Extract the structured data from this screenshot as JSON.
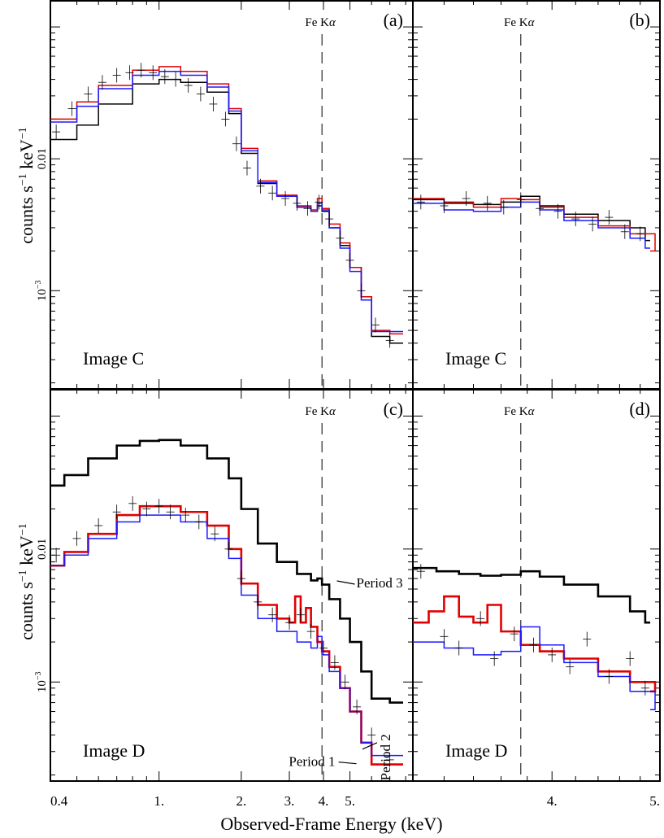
{
  "figure": {
    "xlabel": "Observed-Frame Energy (keV)",
    "ylabel_main": "counts s",
    "ylabel_sup1": "−1",
    "ylabel_mid": " keV",
    "ylabel_sup2": "−1",
    "line_label_main": "Fe K",
    "line_label_alpha": "α",
    "x_ticks_left": [
      "0.4",
      "1.",
      "2.",
      "3.",
      "4.",
      "5."
    ],
    "x_ticks_right": [
      "4.",
      "5."
    ],
    "y_tick_001": "0.01",
    "y_tick_1e3_base": "10",
    "y_tick_1e3_exp": "−3"
  },
  "chart_data": [
    {
      "panel": "(a)",
      "type": "line",
      "annotation": "Image C",
      "xscale": "log",
      "yscale": "log",
      "xlim": [
        0.4,
        8.5
      ],
      "ylim": [
        0.00018,
        0.16
      ],
      "fe_line_keV": 3.95,
      "series": [
        {
          "name": "black",
          "color": "#000000",
          "x": [
            0.4,
            0.5,
            0.6,
            0.8,
            1.0,
            1.2,
            1.5,
            1.8,
            2.0,
            2.3,
            2.7,
            3.2,
            3.6,
            3.8,
            3.95,
            4.2,
            4.6,
            5.0,
            5.5,
            6.0,
            7.0
          ],
          "y": [
            0.014,
            0.018,
            0.026,
            0.037,
            0.04,
            0.038,
            0.032,
            0.022,
            0.011,
            0.0065,
            0.0052,
            0.0043,
            0.004,
            0.0044,
            0.004,
            0.003,
            0.0022,
            0.0015,
            0.0009,
            0.00045,
            0.0004
          ]
        },
        {
          "name": "red",
          "color": "#e00000",
          "x": [
            0.4,
            0.5,
            0.6,
            0.8,
            1.0,
            1.2,
            1.5,
            1.8,
            2.0,
            2.3,
            2.7,
            3.2,
            3.6,
            3.8,
            3.95,
            4.2,
            4.6,
            5.0,
            5.5,
            6.0,
            7.0
          ],
          "y": [
            0.02,
            0.027,
            0.036,
            0.047,
            0.05,
            0.046,
            0.037,
            0.024,
            0.012,
            0.0068,
            0.0053,
            0.0044,
            0.0041,
            0.005,
            0.0042,
            0.0032,
            0.0023,
            0.0015,
            0.0009,
            0.0005,
            0.00047
          ]
        },
        {
          "name": "blue",
          "color": "#1a1aff",
          "x": [
            0.4,
            0.5,
            0.6,
            0.8,
            1.0,
            1.2,
            1.5,
            1.8,
            2.0,
            2.3,
            2.7,
            3.2,
            3.6,
            3.8,
            3.95,
            4.2,
            4.6,
            5.0,
            5.5,
            6.0,
            7.0
          ],
          "y": [
            0.019,
            0.025,
            0.034,
            0.043,
            0.046,
            0.043,
            0.035,
            0.023,
            0.0115,
            0.0066,
            0.0052,
            0.0043,
            0.004,
            0.0046,
            0.0041,
            0.003,
            0.0021,
            0.0014,
            0.00085,
            0.00049,
            0.00049
          ]
        },
        {
          "name": "data",
          "color": "#000000",
          "markers": "cross",
          "x": [
            0.42,
            0.48,
            0.55,
            0.62,
            0.7,
            0.78,
            0.86,
            0.95,
            1.05,
            1.15,
            1.28,
            1.42,
            1.58,
            1.75,
            1.92,
            2.1,
            2.35,
            2.6,
            2.9,
            3.2,
            3.5,
            3.85,
            4.2,
            4.6,
            5.0,
            5.5,
            6.2,
            7.0
          ],
          "y": [
            0.016,
            0.024,
            0.031,
            0.038,
            0.043,
            0.045,
            0.047,
            0.045,
            0.042,
            0.04,
            0.036,
            0.031,
            0.026,
            0.02,
            0.013,
            0.0085,
            0.0062,
            0.0055,
            0.005,
            0.0046,
            0.0042,
            0.0047,
            0.0035,
            0.0025,
            0.0017,
            0.001,
            0.00055,
            0.00042
          ]
        }
      ]
    },
    {
      "panel": "(b)",
      "type": "line",
      "annotation": "Image C",
      "xscale": "log",
      "yscale": "log",
      "xlim": [
        3.0,
        5.0
      ],
      "ylim": [
        0.00018,
        0.16
      ],
      "fe_line_keV": 3.75,
      "series": [
        {
          "name": "black",
          "color": "#000000",
          "x": [
            3.0,
            3.2,
            3.4,
            3.6,
            3.75,
            3.9,
            4.1,
            4.4,
            4.7,
            4.85
          ],
          "y": [
            0.0049,
            0.0046,
            0.0045,
            0.0047,
            0.0052,
            0.0044,
            0.0038,
            0.0034,
            0.003,
            0.0024
          ]
        },
        {
          "name": "red",
          "color": "#e00000",
          "x": [
            3.0,
            3.2,
            3.4,
            3.6,
            3.75,
            3.9,
            4.1,
            4.4,
            4.7,
            4.95
          ],
          "y": [
            0.005,
            0.0047,
            0.0043,
            0.005,
            0.0049,
            0.0043,
            0.0036,
            0.0031,
            0.0027,
            0.002
          ]
        },
        {
          "name": "blue",
          "color": "#1a1aff",
          "x": [
            3.0,
            3.2,
            3.4,
            3.6,
            3.75,
            3.9,
            4.1,
            4.4,
            4.7,
            4.85
          ],
          "y": [
            0.0046,
            0.0041,
            0.004,
            0.0043,
            0.0047,
            0.0041,
            0.0034,
            0.003,
            0.0025,
            0.0021
          ]
        },
        {
          "name": "data",
          "color": "#000000",
          "markers": "cross",
          "x": [
            3.05,
            3.2,
            3.35,
            3.5,
            3.62,
            3.75,
            3.9,
            4.05,
            4.2,
            4.35,
            4.5,
            4.65,
            4.8
          ],
          "y": [
            0.0047,
            0.0044,
            0.005,
            0.0046,
            0.0043,
            0.0049,
            0.0042,
            0.004,
            0.0035,
            0.0032,
            0.0036,
            0.0028,
            0.0027
          ]
        }
      ]
    },
    {
      "panel": "(c)",
      "type": "line",
      "annotation": "Image D",
      "xscale": "log",
      "yscale": "log",
      "xlim": [
        0.4,
        8.5
      ],
      "ylim": [
        0.00018,
        0.16
      ],
      "fe_line_keV": 3.95,
      "labels": [
        "Period 3",
        "Period 2",
        "Period 1"
      ],
      "series": [
        {
          "name": "Period 3",
          "color": "#000000",
          "x": [
            0.4,
            0.45,
            0.55,
            0.7,
            0.85,
            1.0,
            1.2,
            1.5,
            1.8,
            2.0,
            2.3,
            2.7,
            3.2,
            3.6,
            3.8,
            3.95,
            4.2,
            4.6,
            5.0,
            5.5,
            6.0,
            7.0
          ],
          "y": [
            0.03,
            0.036,
            0.048,
            0.06,
            0.065,
            0.066,
            0.06,
            0.048,
            0.034,
            0.02,
            0.011,
            0.008,
            0.0065,
            0.0058,
            0.006,
            0.0054,
            0.0042,
            0.003,
            0.002,
            0.0012,
            0.00075,
            0.0007
          ]
        },
        {
          "name": "Period 2",
          "color": "#e00000",
          "x": [
            0.4,
            0.45,
            0.55,
            0.7,
            0.85,
            1.0,
            1.2,
            1.5,
            1.8,
            2.0,
            2.3,
            2.7,
            3.0,
            3.15,
            3.3,
            3.45,
            3.6,
            3.8,
            3.95,
            4.2,
            4.6,
            5.0,
            5.5,
            6.0,
            7.0
          ],
          "y": [
            0.0075,
            0.0095,
            0.013,
            0.018,
            0.021,
            0.021,
            0.019,
            0.015,
            0.01,
            0.0055,
            0.0038,
            0.003,
            0.0028,
            0.0044,
            0.0028,
            0.0036,
            0.0026,
            0.002,
            0.0017,
            0.0013,
            0.0009,
            0.0006,
            0.00035,
            0.00024,
            0.00024
          ]
        },
        {
          "name": "Period 1",
          "color": "#1a1aff",
          "x": [
            0.4,
            0.45,
            0.55,
            0.7,
            0.85,
            1.0,
            1.2,
            1.5,
            1.8,
            2.0,
            2.3,
            2.7,
            3.2,
            3.6,
            3.8,
            3.95,
            4.2,
            4.6,
            5.0,
            5.5,
            6.0,
            7.0
          ],
          "y": [
            0.0075,
            0.009,
            0.012,
            0.016,
            0.018,
            0.018,
            0.016,
            0.012,
            0.0085,
            0.0045,
            0.003,
            0.0024,
            0.002,
            0.0018,
            0.0022,
            0.0016,
            0.0012,
            0.0009,
            0.0006,
            0.00035,
            0.00028,
            0.00028
          ]
        },
        {
          "name": "data",
          "color": "#000000",
          "markers": "cross",
          "x": [
            0.42,
            0.5,
            0.6,
            0.7,
            0.8,
            0.9,
            1.0,
            1.1,
            1.25,
            1.4,
            1.6,
            1.8,
            2.0,
            2.3,
            2.6,
            3.0,
            3.3,
            3.6,
            4.0,
            4.4,
            4.8,
            5.3,
            6.0,
            7.0
          ],
          "y": [
            0.009,
            0.012,
            0.015,
            0.019,
            0.022,
            0.02,
            0.021,
            0.019,
            0.018,
            0.016,
            0.013,
            0.01,
            0.006,
            0.004,
            0.0032,
            0.0028,
            0.0032,
            0.0024,
            0.0018,
            0.0014,
            0.001,
            0.00065,
            0.0004,
            0.00026
          ]
        }
      ]
    },
    {
      "panel": "(d)",
      "type": "line",
      "annotation": "Image D",
      "xscale": "log",
      "yscale": "log",
      "xlim": [
        3.0,
        5.0
      ],
      "ylim": [
        0.00018,
        0.16
      ],
      "fe_line_keV": 3.75,
      "series": [
        {
          "name": "Period 3",
          "color": "#000000",
          "x": [
            3.0,
            3.15,
            3.3,
            3.45,
            3.6,
            3.75,
            3.9,
            4.1,
            4.4,
            4.7,
            4.85
          ],
          "y": [
            0.0072,
            0.0068,
            0.0065,
            0.0063,
            0.0064,
            0.0068,
            0.0062,
            0.0054,
            0.0044,
            0.0034,
            0.0028
          ]
        },
        {
          "name": "Period 2",
          "color": "#e00000",
          "x": [
            3.0,
            3.1,
            3.2,
            3.3,
            3.4,
            3.5,
            3.6,
            3.75,
            3.9,
            4.1,
            4.4,
            4.7,
            4.95
          ],
          "y": [
            0.0028,
            0.0034,
            0.0044,
            0.0031,
            0.0028,
            0.0038,
            0.0024,
            0.0019,
            0.0017,
            0.0015,
            0.0012,
            0.001,
            0.00085
          ]
        },
        {
          "name": "Period 1",
          "color": "#1a1aff",
          "x": [
            3.0,
            3.2,
            3.4,
            3.6,
            3.75,
            3.9,
            4.1,
            4.4,
            4.7,
            4.95
          ],
          "y": [
            0.002,
            0.0018,
            0.0016,
            0.0017,
            0.0026,
            0.0019,
            0.0014,
            0.0011,
            0.00085,
            0.00062
          ]
        },
        {
          "name": "data",
          "color": "#000000",
          "markers": "cross",
          "x": [
            3.05,
            3.2,
            3.3,
            3.45,
            3.55,
            3.7,
            3.85,
            4.0,
            4.15,
            4.3,
            4.5,
            4.7,
            4.85
          ],
          "y": [
            0.0068,
            0.0022,
            0.0018,
            0.003,
            0.0015,
            0.0023,
            0.0019,
            0.0016,
            0.0013,
            0.0021,
            0.0011,
            0.0015,
            0.0009
          ]
        }
      ]
    }
  ]
}
